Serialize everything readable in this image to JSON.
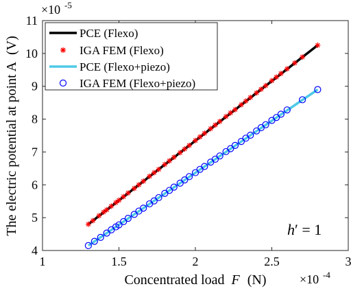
{
  "chart_data": {
    "type": "line",
    "xlabel": "Concentrated load",
    "xlabel_symbol": "F",
    "xlabel_unit": "(N)",
    "ylabel": "The electric potential at point A",
    "ylabel_unit": "(V)",
    "xlim": [
      1,
      3
    ],
    "ylim": [
      4,
      11
    ],
    "x_exponent": "×10^-4",
    "y_exponent": "×10^-5",
    "x_ticks": [
      1,
      1.5,
      2,
      2.5,
      3
    ],
    "y_ticks": [
      4,
      5,
      6,
      7,
      8,
      9,
      10,
      11
    ],
    "x_tick_labels": [
      "1",
      "1.5",
      "2",
      "2.5",
      "3"
    ],
    "y_tick_labels": [
      "4",
      "5",
      "6",
      "7",
      "8",
      "9",
      "10",
      "11"
    ],
    "grid": false,
    "legend_position": "top-left",
    "annotation": "h′ = 1",
    "series": [
      {
        "name": "PCE (Flexo)",
        "style": "line",
        "color": "#000000",
        "x": [
          1.3,
          2.8
        ],
        "y": [
          4.8,
          10.25
        ]
      },
      {
        "name": "IGA FEM (Flexo)",
        "style": "asterisk",
        "color": "#ff0000",
        "x": [
          1.3,
          1.33,
          1.37,
          1.4,
          1.42,
          1.45,
          1.48,
          1.5,
          1.53,
          1.56,
          1.6,
          1.63,
          1.66,
          1.7,
          1.73,
          1.76,
          1.8,
          1.83,
          1.86,
          1.9,
          1.93,
          1.96,
          2.0,
          2.03,
          2.06,
          2.1,
          2.13,
          2.16,
          2.2,
          2.23,
          2.26,
          2.3,
          2.33,
          2.36,
          2.4,
          2.43,
          2.46,
          2.5,
          2.53,
          2.56,
          2.6,
          2.65,
          2.7,
          2.8
        ],
        "y": [
          4.8,
          4.91,
          5.06,
          5.17,
          5.24,
          5.35,
          5.46,
          5.53,
          5.64,
          5.75,
          5.89,
          6.0,
          6.11,
          6.26,
          6.37,
          6.47,
          6.62,
          6.73,
          6.84,
          6.98,
          7.09,
          7.2,
          7.35,
          7.46,
          7.57,
          7.71,
          7.82,
          7.93,
          8.08,
          8.19,
          8.29,
          8.44,
          8.55,
          8.66,
          8.8,
          8.91,
          9.02,
          9.17,
          9.28,
          9.39,
          9.53,
          9.71,
          9.89,
          10.25
        ]
      },
      {
        "name": "PCE (Flexo+piezo)",
        "style": "line",
        "color": "#4ec9e6",
        "x": [
          1.3,
          2.8
        ],
        "y": [
          4.15,
          8.9
        ]
      },
      {
        "name": "IGA FEM (Flexo+piezo)",
        "style": "circle",
        "color": "#0000ff",
        "x": [
          1.3,
          1.34,
          1.38,
          1.42,
          1.45,
          1.48,
          1.5,
          1.53,
          1.56,
          1.6,
          1.63,
          1.66,
          1.7,
          1.73,
          1.76,
          1.8,
          1.83,
          1.86,
          1.9,
          1.93,
          1.96,
          2.0,
          2.03,
          2.06,
          2.1,
          2.13,
          2.16,
          2.2,
          2.23,
          2.26,
          2.3,
          2.33,
          2.36,
          2.4,
          2.43,
          2.46,
          2.5,
          2.53,
          2.56,
          2.6,
          2.7,
          2.8
        ],
        "y": [
          4.15,
          4.28,
          4.4,
          4.53,
          4.63,
          4.72,
          4.78,
          4.88,
          4.98,
          5.1,
          5.2,
          5.29,
          5.42,
          5.51,
          5.61,
          5.74,
          5.83,
          5.93,
          6.05,
          6.15,
          6.25,
          6.37,
          6.47,
          6.56,
          6.69,
          6.78,
          6.88,
          7.01,
          7.1,
          7.2,
          7.32,
          7.42,
          7.51,
          7.64,
          7.74,
          7.83,
          7.96,
          8.05,
          8.15,
          8.28,
          8.59,
          8.9
        ]
      }
    ]
  }
}
